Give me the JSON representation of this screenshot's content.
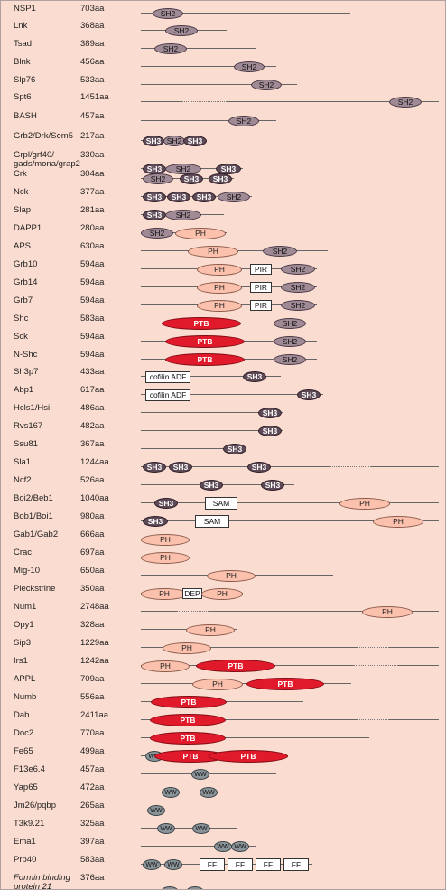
{
  "proteins": [
    {
      "name": "NSP1",
      "length": "703aa",
      "domains": [
        {
          "type": "sh2",
          "label": "SH2"
        }
      ]
    },
    {
      "name": "Lnk",
      "length": "368aa",
      "domains": [
        {
          "type": "sh2",
          "label": "SH2"
        }
      ]
    },
    {
      "name": "Tsad",
      "length": "389aa",
      "domains": [
        {
          "type": "sh2",
          "label": "SH2"
        }
      ]
    },
    {
      "name": "Blnk",
      "length": "456aa",
      "domains": [
        {
          "type": "sh2",
          "label": "SH2"
        }
      ]
    },
    {
      "name": "Slp76",
      "length": "533aa",
      "domains": [
        {
          "type": "sh2",
          "label": "SH2"
        }
      ]
    },
    {
      "name": "Spt6",
      "length": "1451aa",
      "domains": [
        {
          "type": "sh2",
          "label": "SH2"
        }
      ]
    },
    {
      "name": "BASH",
      "length": "457aa",
      "domains": [
        {
          "type": "sh2",
          "label": "SH2"
        }
      ]
    },
    {
      "name": "Grb2/Drk/Sem5",
      "length": "217aa",
      "domains": [
        {
          "type": "sh3",
          "label": "SH3"
        },
        {
          "type": "sh2",
          "label": "SH2"
        },
        {
          "type": "sh3",
          "label": "SH3"
        }
      ]
    },
    {
      "name": "Grpl/grf40/ gads/mona/grap2",
      "length": "330aa",
      "domains": [
        {
          "type": "sh3",
          "label": "SH3"
        },
        {
          "type": "sh2",
          "label": "SH2"
        },
        {
          "type": "sh3",
          "label": "SH3"
        }
      ]
    },
    {
      "name": "Crk",
      "length": "304aa",
      "domains": [
        {
          "type": "sh2",
          "label": "SH2"
        },
        {
          "type": "sh3",
          "label": "SH3"
        },
        {
          "type": "sh3",
          "label": "SH3"
        }
      ]
    },
    {
      "name": "Nck",
      "length": "377aa",
      "domains": [
        {
          "type": "sh3",
          "label": "SH3"
        },
        {
          "type": "sh3",
          "label": "SH3"
        },
        {
          "type": "sh3",
          "label": "SH3"
        },
        {
          "type": "sh2",
          "label": "SH2"
        }
      ]
    },
    {
      "name": "Slap",
      "length": "281aa",
      "domains": [
        {
          "type": "sh3",
          "label": "SH3"
        },
        {
          "type": "sh2",
          "label": "SH2"
        }
      ]
    },
    {
      "name": "DAPP1",
      "length": "280aa",
      "domains": [
        {
          "type": "sh2",
          "label": "SH2"
        },
        {
          "type": "ph",
          "label": "PH"
        }
      ]
    },
    {
      "name": "APS",
      "length": "630aa",
      "domains": [
        {
          "type": "ph",
          "label": "PH"
        },
        {
          "type": "sh2",
          "label": "SH2"
        }
      ]
    },
    {
      "name": "Grb10",
      "length": "594aa",
      "domains": [
        {
          "type": "ph",
          "label": "PH"
        },
        {
          "type": "box",
          "label": "PIR"
        },
        {
          "type": "sh2",
          "label": "SH2"
        }
      ]
    },
    {
      "name": "Grb14",
      "length": "594aa",
      "domains": [
        {
          "type": "ph",
          "label": "PH"
        },
        {
          "type": "box",
          "label": "PIR"
        },
        {
          "type": "sh2",
          "label": "SH2"
        }
      ]
    },
    {
      "name": "Grb7",
      "length": "594aa",
      "domains": [
        {
          "type": "ph",
          "label": "PH"
        },
        {
          "type": "box",
          "label": "PIR"
        },
        {
          "type": "sh2",
          "label": "SH2"
        }
      ]
    },
    {
      "name": "Shc",
      "length": "583aa",
      "domains": [
        {
          "type": "ptb",
          "label": "PTB"
        },
        {
          "type": "sh2",
          "label": "SH2"
        }
      ]
    },
    {
      "name": "Sck",
      "length": "594aa",
      "domains": [
        {
          "type": "ptb",
          "label": "PTB"
        },
        {
          "type": "sh2",
          "label": "SH2"
        }
      ]
    },
    {
      "name": "N-Shc",
      "length": "594aa",
      "domains": [
        {
          "type": "ptb",
          "label": "PTB"
        },
        {
          "type": "sh2",
          "label": "SH2"
        }
      ]
    },
    {
      "name": "Sh3p7",
      "length": "433aa",
      "domains": [
        {
          "type": "box",
          "label": "cofilin ADF"
        },
        {
          "type": "sh3",
          "label": "SH3"
        }
      ]
    },
    {
      "name": "Abp1",
      "length": "617aa",
      "domains": [
        {
          "type": "box",
          "label": "cofilin ADF"
        },
        {
          "type": "sh3",
          "label": "SH3"
        }
      ]
    },
    {
      "name": "Hcls1/Hsi",
      "length": "486aa",
      "domains": [
        {
          "type": "sh3",
          "label": "SH3"
        }
      ]
    },
    {
      "name": "Rvs167",
      "length": "482aa",
      "domains": [
        {
          "type": "sh3",
          "label": "SH3"
        }
      ]
    },
    {
      "name": "Ssu81",
      "length": "367aa",
      "domains": [
        {
          "type": "sh3",
          "label": "SH3"
        }
      ]
    },
    {
      "name": "Sla1",
      "length": "1244aa",
      "domains": [
        {
          "type": "sh3",
          "label": "SH3"
        },
        {
          "type": "sh3",
          "label": "SH3"
        },
        {
          "type": "sh3",
          "label": "SH3"
        }
      ]
    },
    {
      "name": "Ncf2",
      "length": "526aa",
      "domains": [
        {
          "type": "sh3",
          "label": "SH3"
        },
        {
          "type": "sh3",
          "label": "SH3"
        }
      ]
    },
    {
      "name": "Boi2/Beb1",
      "length": "1040aa",
      "domains": [
        {
          "type": "sh3",
          "label": "SH3"
        },
        {
          "type": "box",
          "label": "SAM"
        },
        {
          "type": "ph",
          "label": "PH"
        }
      ]
    },
    {
      "name": "Bob1/Boi1",
      "length": "980aa",
      "domains": [
        {
          "type": "sh3",
          "label": "SH3"
        },
        {
          "type": "box",
          "label": "SAM"
        },
        {
          "type": "ph",
          "label": "PH"
        }
      ]
    },
    {
      "name": "Gab1/Gab2",
      "length": "666aa",
      "domains": [
        {
          "type": "ph",
          "label": "PH"
        }
      ]
    },
    {
      "name": "Crac",
      "length": "697aa",
      "domains": [
        {
          "type": "ph",
          "label": "PH"
        }
      ]
    },
    {
      "name": "Mig-10",
      "length": "650aa",
      "domains": [
        {
          "type": "ph",
          "label": "PH"
        }
      ]
    },
    {
      "name": "Pleckstrine",
      "length": "350aa",
      "domains": [
        {
          "type": "ph",
          "label": "PH"
        },
        {
          "type": "box",
          "label": "DEP"
        },
        {
          "type": "ph",
          "label": "PH"
        }
      ]
    },
    {
      "name": "Num1",
      "length": "2748aa",
      "domains": [
        {
          "type": "ph",
          "label": "PH"
        }
      ]
    },
    {
      "name": "Opy1",
      "length": "328aa",
      "domains": [
        {
          "type": "ph",
          "label": "PH"
        }
      ]
    },
    {
      "name": "Sip3",
      "length": "1229aa",
      "domains": [
        {
          "type": "ph",
          "label": "PH"
        }
      ]
    },
    {
      "name": "Irs1",
      "length": "1242aa",
      "domains": [
        {
          "type": "ph",
          "label": "PH"
        },
        {
          "type": "ptb",
          "label": "PTB"
        }
      ]
    },
    {
      "name": "APPL",
      "length": "709aa",
      "domains": [
        {
          "type": "ph",
          "label": "PH"
        },
        {
          "type": "ptb",
          "label": "PTB"
        }
      ]
    },
    {
      "name": "Numb",
      "length": "556aa",
      "domains": [
        {
          "type": "ptb",
          "label": "PTB"
        }
      ]
    },
    {
      "name": "Dab",
      "length": "2411aa",
      "domains": [
        {
          "type": "ptb",
          "label": "PTB"
        }
      ]
    },
    {
      "name": "Doc2",
      "length": "770aa",
      "domains": [
        {
          "type": "ptb",
          "label": "PTB"
        }
      ]
    },
    {
      "name": "Fe65",
      "length": "499aa",
      "domains": [
        {
          "type": "ww",
          "label": "WW"
        },
        {
          "type": "ptb",
          "label": "PTB"
        },
        {
          "type": "ptb",
          "label": "PTB"
        }
      ]
    },
    {
      "name": "F13e6.4",
      "length": "457aa",
      "domains": [
        {
          "type": "ww",
          "label": "WW"
        }
      ]
    },
    {
      "name": "Yap65",
      "length": "472aa",
      "domains": [
        {
          "type": "ww",
          "label": "WW"
        },
        {
          "type": "ww",
          "label": "WW"
        }
      ]
    },
    {
      "name": "Jm26/pqbp",
      "length": "265aa",
      "domains": [
        {
          "type": "ww",
          "label": "WW"
        }
      ]
    },
    {
      "name": "T3k9.21",
      "length": "325aa",
      "domains": [
        {
          "type": "ww",
          "label": "WW"
        },
        {
          "type": "ww",
          "label": "WW"
        }
      ]
    },
    {
      "name": "Ema1",
      "length": "397aa",
      "domains": [
        {
          "type": "ww",
          "label": "WW"
        },
        {
          "type": "ww",
          "label": "WW"
        }
      ]
    },
    {
      "name": "Prp40",
      "length": "583aa",
      "domains": [
        {
          "type": "ww",
          "label": "WW"
        },
        {
          "type": "ww",
          "label": "WW"
        },
        {
          "type": "box",
          "label": "FF"
        },
        {
          "type": "box",
          "label": "FF"
        },
        {
          "type": "box",
          "label": "FF"
        },
        {
          "type": "box",
          "label": "FF"
        }
      ]
    },
    {
      "name": "Formin binding protein 21",
      "length": "376aa",
      "italic": true,
      "domains": [
        {
          "type": "ww",
          "label": "WW"
        },
        {
          "type": "ww",
          "label": "WW"
        }
      ]
    }
  ]
}
